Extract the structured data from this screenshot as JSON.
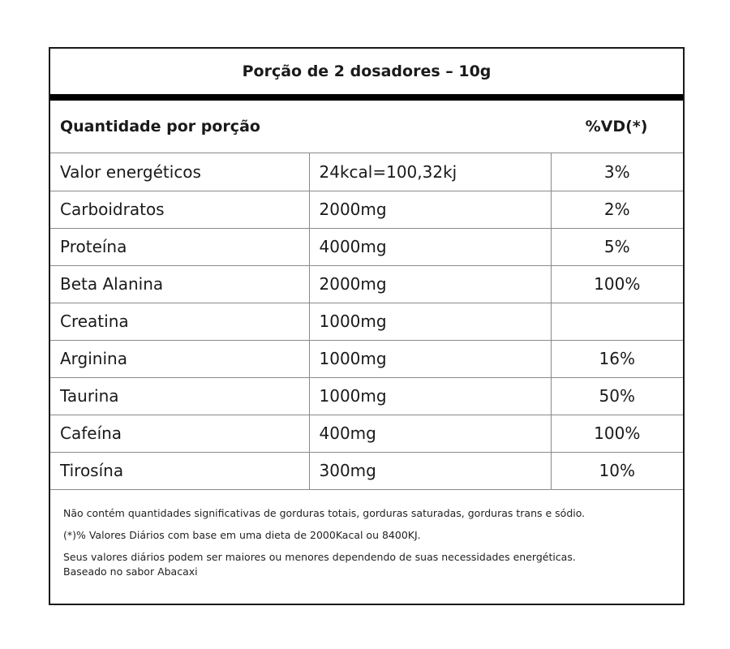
{
  "title": "Porção de 2 dosadores – 10g",
  "header": {
    "quantity_label": "Quantidade por porção",
    "vd_label": "%VD(*)"
  },
  "rows": [
    {
      "name": "Valor energéticos",
      "amount": "24kcal=100,32kj",
      "vd": "3%"
    },
    {
      "name": "Carboidratos",
      "amount": "2000mg",
      "vd": "2%"
    },
    {
      "name": "Proteína",
      "amount": "4000mg",
      "vd": "5%"
    },
    {
      "name": "Beta Alanina",
      "amount": "2000mg",
      "vd": "100%"
    },
    {
      "name": "Creatina",
      "amount": "1000mg",
      "vd": ""
    },
    {
      "name": "Arginina",
      "amount": "1000mg",
      "vd": "16%"
    },
    {
      "name": "Taurina",
      "amount": "1000mg",
      "vd": "50%"
    },
    {
      "name": "Cafeína",
      "amount": "400mg",
      "vd": "100%"
    },
    {
      "name": "Tirosína",
      "amount": "300mg",
      "vd": "10%"
    }
  ],
  "footnotes": {
    "note1": "Não contém quantidades significativas de gorduras totais, gorduras saturadas, gorduras trans e sódio.",
    "note2": "(*)% Valores Diários com base em uma dieta de 2000Kacal ou 8400KJ.",
    "note3": "Seus valores diários podem ser maiores ou menores dependendo de suas necessidades energéticas.",
    "note4": "Baseado no sabor Abacaxi"
  }
}
